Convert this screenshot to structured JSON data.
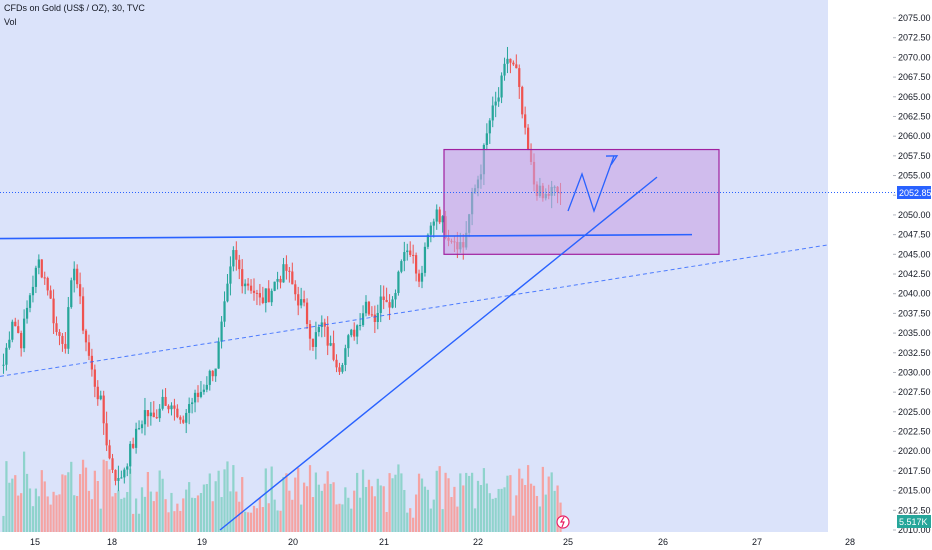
{
  "header": {
    "title": "CFDs on Gold (US$ / OZ), 30, TVC",
    "vol_label": "Vol"
  },
  "chart_data": {
    "type": "candlestick",
    "symbol": "CFDs on Gold (US$ / OZ)",
    "interval": "30",
    "source": "TVC",
    "y_ticks": [
      "2075.00",
      "2072.50",
      "2070.00",
      "2067.50",
      "2065.00",
      "2062.50",
      "2060.00",
      "2057.50",
      "2055.00",
      "2052.50",
      "2050.00",
      "2047.50",
      "2045.00",
      "2042.50",
      "2040.00",
      "2037.50",
      "2035.00",
      "2032.50",
      "2030.00",
      "2027.50",
      "2025.00",
      "2022.50",
      "2020.00",
      "2017.50",
      "2015.00",
      "2012.50",
      "2010.00"
    ],
    "x_ticks": [
      "15",
      "18",
      "19",
      "20",
      "21",
      "22",
      "25",
      "26",
      "27",
      "28"
    ],
    "last_price": "2052.85",
    "last_volume": "5.517K",
    "ylim": [
      2010,
      2076
    ],
    "price_path": [
      2031,
      2037,
      2034,
      2040,
      2044,
      2041,
      2035,
      2034,
      2044,
      2036,
      2030,
      2026,
      2019,
      2016,
      2019,
      2022,
      2025,
      2024,
      2027,
      2026,
      2023,
      2026,
      2027,
      2029,
      2031,
      2038,
      2045,
      2042,
      2041,
      2039,
      2040,
      2042,
      2043,
      2040,
      2038,
      2034,
      2036,
      2033,
      2031,
      2034,
      2036,
      2039,
      2037,
      2040,
      2039,
      2045,
      2046,
      2041,
      2047,
      2051,
      2048,
      2047,
      2046,
      2052,
      2056,
      2062,
      2065,
      2070,
      2068,
      2060,
      2054,
      2052,
      2053,
      2052.85
    ],
    "colors": {
      "up": "#26a69a",
      "down": "#ef5350",
      "box_fill": "#c8a2e4",
      "box_stroke": "#a020a0",
      "line": "#2962ff",
      "bg": "#dbe3fa"
    }
  }
}
